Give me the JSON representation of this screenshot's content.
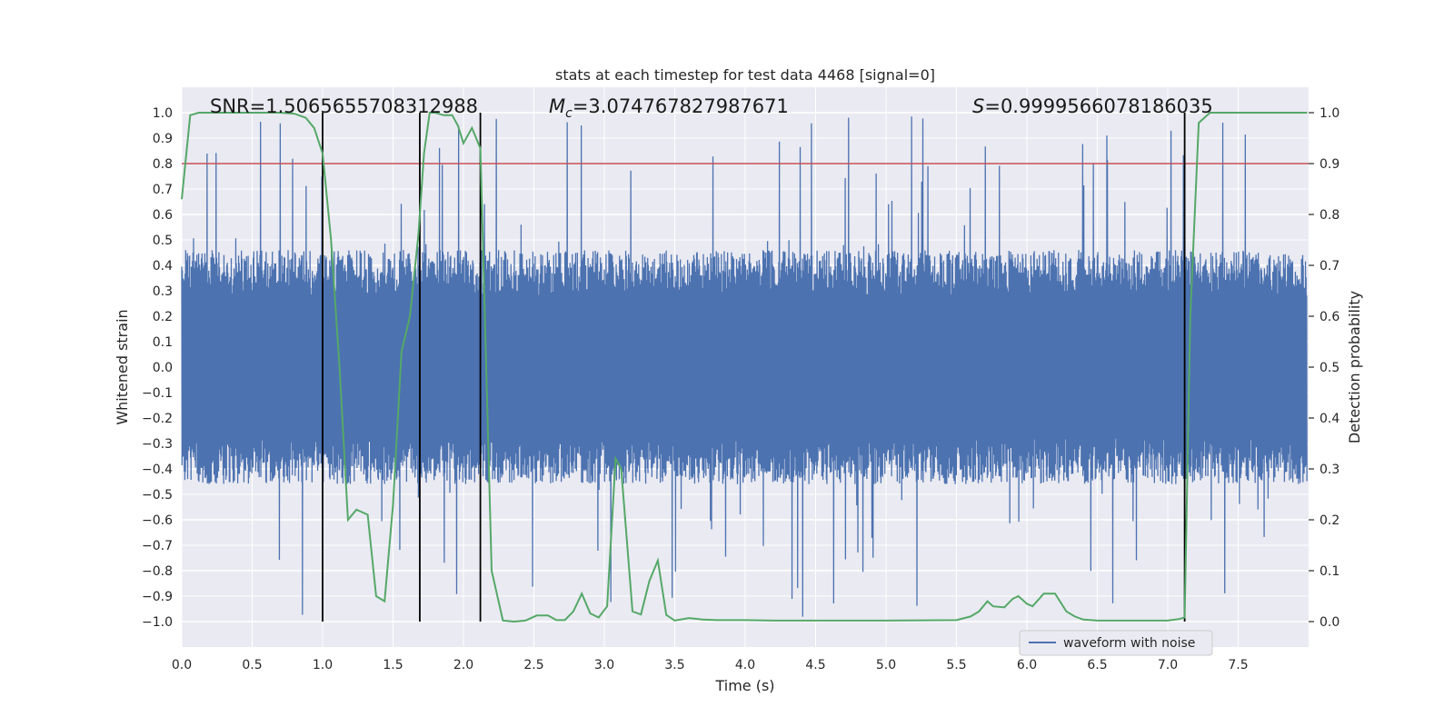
{
  "chart_data": {
    "type": "line",
    "title": "stats at each timestep for test data 4468 [signal=0]",
    "xlabel": "Time (s)",
    "ylabel": "Whitened strain",
    "y2label": "Detection probability",
    "xlim": [
      0,
      8.0
    ],
    "ylim": [
      -1.1,
      1.1
    ],
    "y2lim": [
      -0.05,
      1.05
    ],
    "x_ticks": [
      0.0,
      0.5,
      1.0,
      1.5,
      2.0,
      2.5,
      3.0,
      3.5,
      4.0,
      4.5,
      5.0,
      5.5,
      6.0,
      6.5,
      7.0,
      7.5
    ],
    "x_tick_labels": [
      "0.0",
      "0.5",
      "1.0",
      "1.5",
      "2.0",
      "2.5",
      "3.0",
      "3.5",
      "4.0",
      "4.5",
      "5.0",
      "5.5",
      "6.0",
      "6.5",
      "7.0",
      "7.5"
    ],
    "y_ticks": [
      -1.0,
      -0.9,
      -0.8,
      -0.7,
      -0.6,
      -0.5,
      -0.4,
      -0.3,
      -0.2,
      -0.1,
      0.0,
      0.1,
      0.2,
      0.3,
      0.4,
      0.5,
      0.6,
      0.7,
      0.8,
      0.9,
      1.0
    ],
    "y_tick_labels": [
      "−1.0",
      "−0.9",
      "−0.8",
      "−0.7",
      "−0.6",
      "−0.5",
      "−0.4",
      "−0.3",
      "−0.2",
      "−0.1",
      "0.0",
      "0.1",
      "0.2",
      "0.3",
      "0.4",
      "0.5",
      "0.6",
      "0.7",
      "0.8",
      "0.9",
      "1.0"
    ],
    "y2_ticks": [
      0.0,
      0.1,
      0.2,
      0.3,
      0.4,
      0.5,
      0.6,
      0.7,
      0.8,
      0.9,
      1.0
    ],
    "y2_tick_labels": [
      "0.0",
      "0.1",
      "0.2",
      "0.3",
      "0.4",
      "0.5",
      "0.6",
      "0.7",
      "0.8",
      "0.9",
      "1.0"
    ],
    "grid": true,
    "legend_placement": "lower-right",
    "annotations": {
      "snr": "SNR=1.5065655708312988",
      "mc_symbol": "M",
      "mc_subscript": "c",
      "mc_value": "=3.074767827987671",
      "s_symbol": "S",
      "s_value": "=0.9999566078186035"
    },
    "series": [
      {
        "name": "waveform with noise",
        "color": "#4c72b0",
        "axis": "left",
        "style": "dense-noise",
        "typical_amplitude": 0.4,
        "max_peak": 0.99,
        "min_peak": -1.0
      },
      {
        "color": "#55a868",
        "axis": "right",
        "x": [
          0.0,
          0.06,
          0.12,
          0.2,
          0.3,
          0.5,
          0.7,
          0.8,
          0.88,
          0.94,
          1.0,
          1.06,
          1.12,
          1.18,
          1.24,
          1.32,
          1.38,
          1.44,
          1.5,
          1.56,
          1.62,
          1.68,
          1.72,
          1.76,
          1.8,
          1.86,
          1.92,
          1.96,
          2.0,
          2.06,
          2.12,
          2.2,
          2.28,
          2.36,
          2.44,
          2.52,
          2.6,
          2.66,
          2.72,
          2.78,
          2.84,
          2.9,
          2.96,
          3.02,
          3.08,
          3.12,
          3.2,
          3.26,
          3.32,
          3.38,
          3.44,
          3.5,
          3.6,
          3.7,
          3.8,
          3.9,
          4.0,
          4.2,
          4.5,
          5.0,
          5.5,
          5.6,
          5.66,
          5.72,
          5.76,
          5.84,
          5.9,
          5.94,
          6.0,
          6.04,
          6.12,
          6.2,
          6.28,
          6.34,
          6.4,
          6.5,
          6.6,
          7.0,
          7.08,
          7.12,
          7.16,
          7.22,
          7.3,
          7.5,
          7.99
        ],
        "y": [
          0.83,
          0.995,
          1.0,
          1.0,
          1.0,
          1.0,
          1.0,
          0.998,
          0.99,
          0.97,
          0.92,
          0.75,
          0.5,
          0.2,
          0.22,
          0.21,
          0.05,
          0.04,
          0.23,
          0.53,
          0.6,
          0.76,
          0.92,
          1.0,
          1.0,
          0.995,
          0.995,
          0.975,
          0.94,
          0.97,
          0.93,
          0.1,
          0.002,
          0.0,
          0.002,
          0.012,
          0.012,
          0.003,
          0.003,
          0.02,
          0.055,
          0.016,
          0.008,
          0.03,
          0.32,
          0.3,
          0.02,
          0.014,
          0.08,
          0.12,
          0.013,
          0.002,
          0.007,
          0.004,
          0.003,
          0.003,
          0.003,
          0.002,
          0.002,
          0.002,
          0.003,
          0.01,
          0.02,
          0.04,
          0.03,
          0.028,
          0.045,
          0.05,
          0.035,
          0.03,
          0.055,
          0.055,
          0.02,
          0.01,
          0.004,
          0.002,
          0.002,
          0.002,
          0.005,
          0.008,
          0.6,
          0.98,
          1.0,
          1.0,
          1.0
        ]
      }
    ],
    "threshold_line": {
      "axis": "right",
      "value": 0.9,
      "color": "#c44e52"
    },
    "vertical_markers": {
      "x": [
        1.0,
        1.69,
        2.12,
        7.12
      ],
      "color": "#000000",
      "y2_top": 1.0,
      "y_bottom": -1.0
    }
  }
}
